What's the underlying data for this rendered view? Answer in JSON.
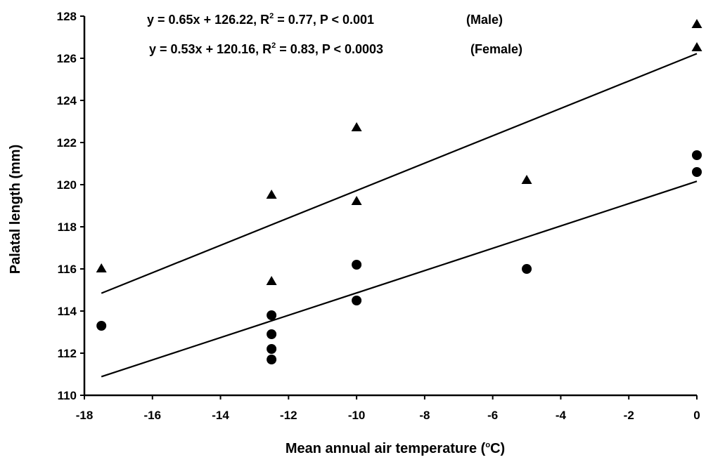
{
  "chart_data": {
    "type": "scatter",
    "xlabel": {
      "main": "Mean annual air temperature (",
      "sup": "o",
      "rest": "C)"
    },
    "ylabel": "Palatal length (mm)",
    "xlim": [
      -18,
      0
    ],
    "ylim": [
      110,
      128
    ],
    "xticks": [
      "-18",
      "-16",
      "-14",
      "-12",
      "-10",
      "-8",
      "-6",
      "-4",
      "-2",
      "0"
    ],
    "yticks": [
      "110",
      "112",
      "114",
      "116",
      "118",
      "120",
      "122",
      "124",
      "126",
      "128"
    ],
    "annotations": [
      {
        "pre": "y = 0.65x + 126.22, R",
        "sup": "2",
        "post": " = 0.77, P < 0.001",
        "tag": "(Male)"
      },
      {
        "pre": "y = 0.53x + 120.16, R",
        "sup": "2",
        "post": " = 0.83, P < 0.0003",
        "tag": "(Female)"
      }
    ],
    "series": [
      {
        "marker": "triangle",
        "points": [
          [
            -17.5,
            116.0
          ],
          [
            -12.5,
            119.5
          ],
          [
            -12.5,
            115.4
          ],
          [
            -10,
            122.7
          ],
          [
            -10,
            119.2
          ],
          [
            -5,
            120.2
          ],
          [
            0,
            127.6
          ],
          [
            0,
            126.5
          ]
        ],
        "fit": {
          "slope": 0.65,
          "intercept": 126.22,
          "x_range": [
            -17.5,
            0
          ]
        }
      },
      {
        "marker": "circle",
        "points": [
          [
            -17.5,
            113.3
          ],
          [
            -12.5,
            113.8
          ],
          [
            -12.5,
            112.9
          ],
          [
            -12.5,
            112.2
          ],
          [
            -12.5,
            111.7
          ],
          [
            -10,
            116.2
          ],
          [
            -10,
            114.5
          ],
          [
            -5,
            116.0
          ],
          [
            0,
            121.4
          ],
          [
            0,
            120.6
          ]
        ],
        "fit": {
          "slope": 0.53,
          "intercept": 120.16,
          "x_range": [
            -17.5,
            0
          ]
        }
      }
    ],
    "grid": false,
    "legend": "none"
  }
}
